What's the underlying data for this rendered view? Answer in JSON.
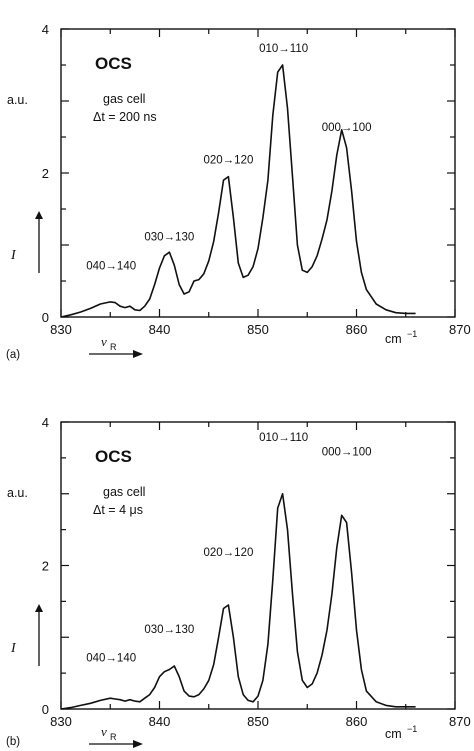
{
  "chart_data": [
    {
      "type": "line",
      "panel_label": "(a)",
      "molecule": "OCS",
      "conditions": [
        "gas cell",
        "Δt = 200 ns"
      ],
      "ylabel": "I",
      "yunit": "a.u.",
      "xlabel": "ν",
      "xlabel_sub": "R",
      "xunit": "cm",
      "xunit_exp": "−1",
      "xlim": [
        830,
        870
      ],
      "ylim": [
        0,
        4
      ],
      "xticks": [
        "830",
        "840",
        "850",
        "860",
        "870"
      ],
      "yticks": [
        "0",
        "2",
        "4"
      ],
      "peaks": [
        {
          "label": "040→140",
          "x": 835.5,
          "y": 0.55
        },
        {
          "label": "030→130",
          "x": 841.2,
          "y": 0.95
        },
        {
          "label": "020→120",
          "x": 847.0,
          "y": 2.05
        },
        {
          "label": "010→110",
          "x": 852.6,
          "y": 3.6
        },
        {
          "label": "000→100",
          "x": 859.0,
          "y": 2.5
        }
      ],
      "series": [
        {
          "x": [
            830,
            831,
            832,
            833,
            834,
            835,
            835.5,
            836,
            836.5,
            837,
            837.5,
            838,
            838.5,
            839,
            839.5,
            840,
            840.5,
            841,
            841.5,
            842,
            842.5,
            843,
            843.5,
            844,
            844.5,
            845,
            845.5,
            846,
            846.5,
            847,
            847.5,
            848,
            848.5,
            849,
            849.5,
            850,
            850.5,
            851,
            851.5,
            852,
            852.5,
            853,
            853.5,
            854,
            854.5,
            855,
            855.5,
            856,
            856.5,
            857,
            857.5,
            858,
            858.5,
            859,
            859.5,
            860,
            860.5,
            861,
            862,
            863,
            864,
            865,
            866
          ],
          "y": [
            0.0,
            0.03,
            0.07,
            0.12,
            0.18,
            0.21,
            0.2,
            0.15,
            0.13,
            0.15,
            0.1,
            0.09,
            0.15,
            0.25,
            0.45,
            0.68,
            0.85,
            0.9,
            0.72,
            0.45,
            0.32,
            0.35,
            0.5,
            0.52,
            0.6,
            0.78,
            1.05,
            1.45,
            1.9,
            1.95,
            1.38,
            0.75,
            0.55,
            0.58,
            0.7,
            0.95,
            1.38,
            1.9,
            2.8,
            3.4,
            3.5,
            2.9,
            1.95,
            1.0,
            0.65,
            0.62,
            0.7,
            0.85,
            1.08,
            1.35,
            1.75,
            2.25,
            2.6,
            2.35,
            1.75,
            1.05,
            0.62,
            0.38,
            0.18,
            0.1,
            0.06,
            0.05,
            0.05
          ]
        }
      ]
    },
    {
      "type": "line",
      "panel_label": "(b)",
      "molecule": "OCS",
      "conditions": [
        "gas cell",
        "Δt = 4 μs"
      ],
      "ylabel": "I",
      "yunit": "a.u.",
      "xlabel": "ν",
      "xlabel_sub": "R",
      "xunit": "cm",
      "xunit_exp": "−1",
      "xlim": [
        830,
        870
      ],
      "ylim": [
        0,
        4
      ],
      "xticks": [
        "830",
        "840",
        "850",
        "860",
        "870"
      ],
      "yticks": [
        "0",
        "2",
        "4"
      ],
      "peaks": [
        {
          "label": "040→140",
          "x": 835.5,
          "y": 0.55
        },
        {
          "label": "030→130",
          "x": 841.2,
          "y": 0.95
        },
        {
          "label": "020→120",
          "x": 847.0,
          "y": 2.05
        },
        {
          "label": "010→110",
          "x": 852.6,
          "y": 3.65
        },
        {
          "label": "000→100",
          "x": 859.0,
          "y": 3.45
        }
      ],
      "series": [
        {
          "x": [
            830,
            831,
            832,
            833,
            834,
            835,
            835.5,
            836,
            836.5,
            837,
            837.5,
            838,
            838.5,
            839,
            839.5,
            840,
            840.5,
            841,
            841.5,
            842,
            842.5,
            843,
            843.5,
            844,
            844.5,
            845,
            845.5,
            846,
            846.5,
            847,
            847.5,
            848,
            848.5,
            849,
            849.5,
            850,
            850.5,
            851,
            851.5,
            852,
            852.5,
            853,
            853.5,
            854,
            854.5,
            855,
            855.5,
            856,
            856.5,
            857,
            857.5,
            858,
            858.5,
            859,
            859.5,
            860,
            860.5,
            861,
            862,
            863,
            864,
            865,
            866
          ],
          "y": [
            0.0,
            0.02,
            0.05,
            0.08,
            0.12,
            0.15,
            0.14,
            0.13,
            0.11,
            0.13,
            0.11,
            0.1,
            0.15,
            0.2,
            0.3,
            0.45,
            0.52,
            0.55,
            0.6,
            0.45,
            0.25,
            0.18,
            0.17,
            0.2,
            0.28,
            0.4,
            0.62,
            1.0,
            1.4,
            1.45,
            1.0,
            0.45,
            0.2,
            0.12,
            0.1,
            0.18,
            0.4,
            0.9,
            1.8,
            2.8,
            3.0,
            2.5,
            1.6,
            0.8,
            0.4,
            0.3,
            0.35,
            0.5,
            0.75,
            1.1,
            1.6,
            2.25,
            2.7,
            2.6,
            1.9,
            1.1,
            0.55,
            0.25,
            0.1,
            0.05,
            0.03,
            0.03,
            0.03
          ]
        }
      ]
    }
  ]
}
